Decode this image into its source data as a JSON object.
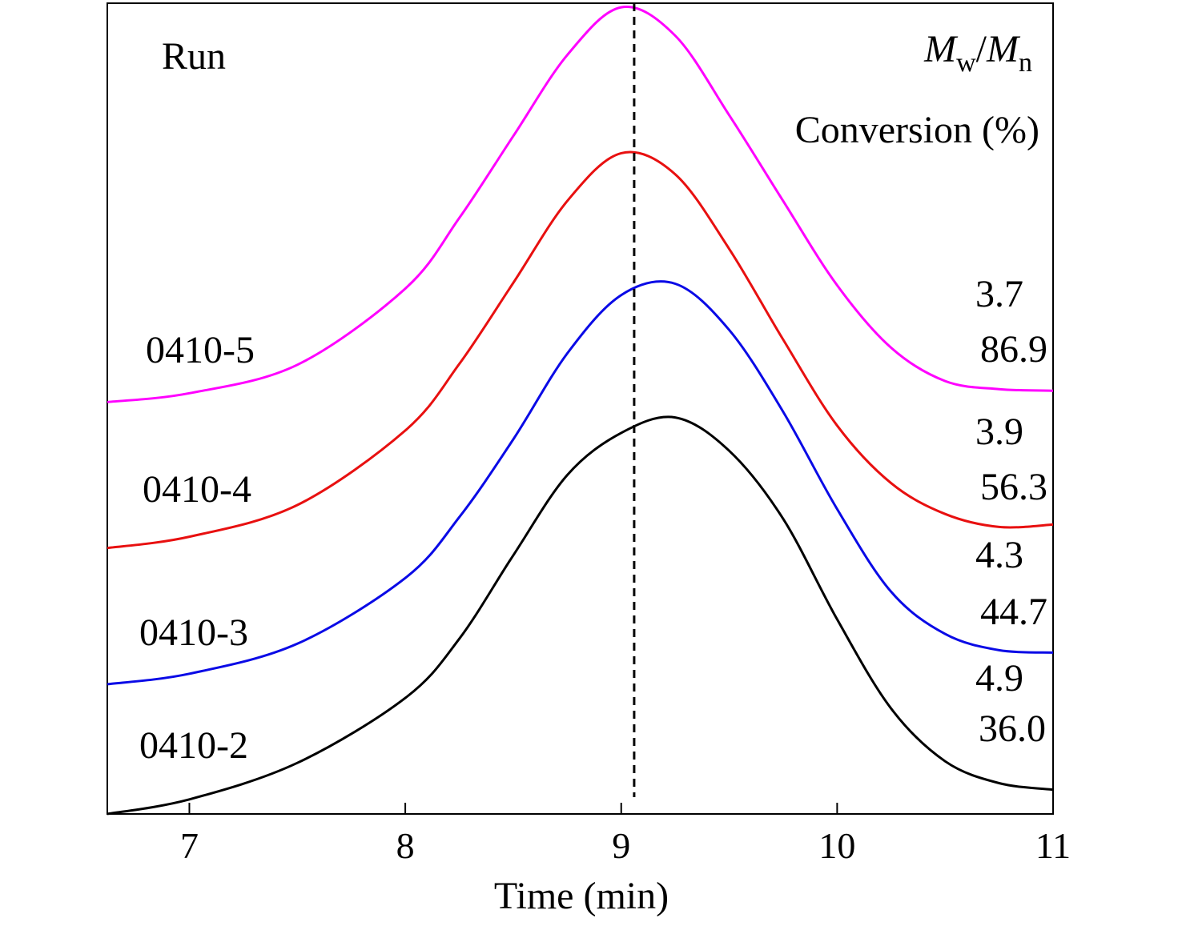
{
  "chart_data": {
    "type": "line",
    "title": "",
    "xlabel": "Time (min)",
    "ylabel": "",
    "xlim": [
      6.62,
      11
    ],
    "ylim": [
      0,
      1
    ],
    "xticks": [
      7,
      8,
      9,
      10,
      11
    ],
    "xtick_labels": [
      "7",
      "8",
      "9",
      "10",
      "11"
    ],
    "reference_line": {
      "x": 9.06,
      "style": "dashed",
      "color": "#000000"
    },
    "header_run": "Run",
    "header_mw_mn": {
      "m1": "M",
      "sub1": "w",
      "slash": "/",
      "m2": "M",
      "sub2": "n"
    },
    "header_conversion": "Conversion (%)",
    "series": [
      {
        "name": "0410-5",
        "color": "#ff00ff",
        "mw_mn": "3.7",
        "conversion": "86.9",
        "x": [
          6.62,
          7.0,
          7.5,
          8.0,
          8.25,
          8.5,
          8.75,
          9.0,
          9.25,
          9.5,
          9.75,
          10.0,
          10.25,
          10.5,
          10.75,
          11.0
        ],
        "y": [
          0.508,
          0.519,
          0.554,
          0.648,
          0.735,
          0.836,
          0.936,
          0.995,
          0.96,
          0.862,
          0.756,
          0.652,
          0.575,
          0.534,
          0.524,
          0.522
        ]
      },
      {
        "name": "0410-4",
        "color": "#e81010",
        "mw_mn": "3.9",
        "conversion": "56.3",
        "x": [
          6.62,
          7.0,
          7.5,
          8.0,
          8.25,
          8.5,
          8.75,
          9.0,
          9.25,
          9.5,
          9.75,
          10.0,
          10.25,
          10.5,
          10.75,
          11.0
        ],
        "y": [
          0.328,
          0.342,
          0.381,
          0.473,
          0.555,
          0.655,
          0.756,
          0.815,
          0.789,
          0.697,
          0.585,
          0.479,
          0.408,
          0.37,
          0.354,
          0.357
        ]
      },
      {
        "name": "0410-3",
        "color": "#0a0ae6",
        "mw_mn": "4.3",
        "conversion": "44.7",
        "x": [
          6.62,
          7.0,
          7.5,
          8.0,
          8.25,
          8.5,
          8.75,
          9.0,
          9.25,
          9.5,
          9.75,
          10.0,
          10.25,
          10.5,
          10.75,
          11.0
        ],
        "y": [
          0.16,
          0.173,
          0.21,
          0.291,
          0.366,
          0.462,
          0.568,
          0.64,
          0.654,
          0.597,
          0.496,
          0.376,
          0.274,
          0.222,
          0.202,
          0.199
        ]
      },
      {
        "name": "0410-2",
        "color": "#000000",
        "mw_mn": "4.9",
        "conversion": "36.0",
        "x": [
          6.62,
          7.0,
          7.5,
          8.0,
          8.25,
          8.5,
          8.75,
          9.0,
          9.25,
          9.5,
          9.75,
          10.0,
          10.25,
          10.5,
          10.75,
          11.0
        ],
        "y": [
          0.0,
          0.018,
          0.063,
          0.143,
          0.216,
          0.319,
          0.418,
          0.47,
          0.489,
          0.448,
          0.364,
          0.24,
          0.13,
          0.065,
          0.038,
          0.03
        ]
      }
    ]
  }
}
